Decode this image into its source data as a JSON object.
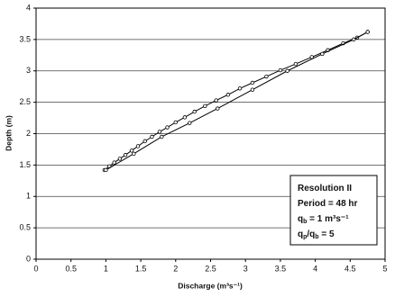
{
  "chart_data": {
    "type": "line",
    "x_label": "Discharge (m³s⁻¹)",
    "y_label": "Depth (m)",
    "xlim": [
      0,
      5
    ],
    "xticks": [
      0,
      0.5,
      1,
      1.5,
      2,
      2.5,
      3,
      3.5,
      4,
      4.5,
      5
    ],
    "ylim": [
      0,
      4
    ],
    "yticks": [
      0,
      0.5,
      1,
      1.5,
      2,
      2.5,
      3,
      3.5,
      4
    ],
    "grid": true,
    "series": [
      {
        "color": "#000000",
        "x": [
          0.98,
          1.05,
          1.12,
          1.2,
          1.28,
          1.37,
          1.46,
          1.56,
          1.66,
          1.77,
          1.88,
          2.0,
          2.13,
          2.27,
          2.42,
          2.58,
          2.75,
          2.92,
          3.1,
          3.3,
          3.5,
          3.72,
          3.95,
          4.18,
          4.4,
          4.6,
          4.75
        ],
        "values": [
          1.42,
          1.48,
          1.54,
          1.6,
          1.66,
          1.73,
          1.8,
          1.88,
          1.95,
          2.03,
          2.1,
          2.18,
          2.26,
          2.35,
          2.44,
          2.53,
          2.62,
          2.72,
          2.81,
          2.91,
          3.01,
          3.11,
          3.22,
          3.33,
          3.44,
          3.53,
          3.62
        ]
      },
      {
        "color": "#000000",
        "x": [
          4.75,
          4.55,
          4.1,
          3.6,
          3.1,
          2.6,
          2.2,
          1.8,
          1.4,
          1.0
        ],
        "values": [
          3.62,
          3.5,
          3.27,
          3.0,
          2.7,
          2.4,
          2.17,
          1.95,
          1.68,
          1.42
        ]
      }
    ],
    "annotation": [
      [
        "Resolution II"
      ],
      [
        "Period = 48 hr"
      ],
      [
        "q",
        {
          "sub": "b"
        },
        " = 1 m³s⁻¹"
      ],
      [
        "q",
        {
          "sub": "p"
        },
        "/q",
        {
          "sub": "b"
        },
        " = 5"
      ]
    ]
  }
}
